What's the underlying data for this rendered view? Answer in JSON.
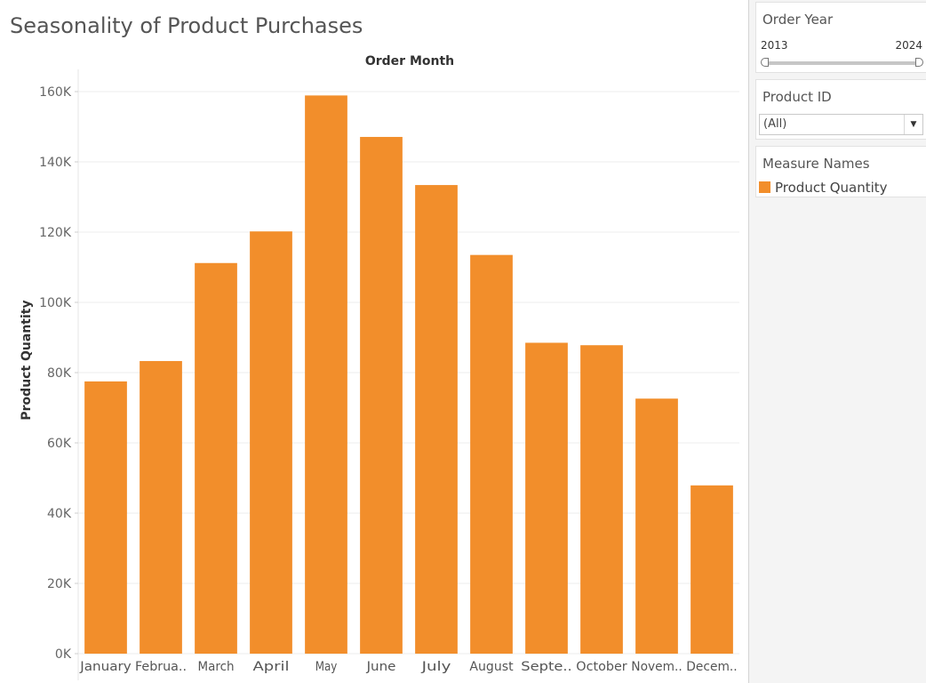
{
  "dashboard": {
    "title": "Seasonality of Product Purchases"
  },
  "filters": {
    "order_year": {
      "title": "Order Year",
      "range_min_label": "2013",
      "range_max_label": "2024"
    },
    "product_id": {
      "title": "Product ID",
      "selected": "(All)"
    }
  },
  "legend": {
    "title": "Measure Names",
    "items": [
      {
        "label": "Product Quantity",
        "color": "#f28e2b"
      }
    ]
  },
  "chart_data": {
    "type": "bar",
    "title": "",
    "column_header": "Order Month",
    "xlabel": "",
    "ylabel": "Product Quantity",
    "categories": [
      "January",
      "Februa..",
      "March",
      "April",
      "May",
      "June",
      "July",
      "August",
      "Septe..",
      "October",
      "Novem..",
      "Decem.."
    ],
    "series": [
      {
        "name": "Product Quantity",
        "color": "#f28e2b",
        "values": [
          77500,
          83300,
          111200,
          120200,
          158900,
          147100,
          133400,
          113500,
          88500,
          87800,
          72600,
          47900
        ]
      }
    ],
    "ylim": [
      0,
      160000
    ],
    "yticks": [
      0,
      20000,
      40000,
      60000,
      80000,
      100000,
      120000,
      140000,
      160000
    ],
    "ytick_labels": [
      "0K",
      "20K",
      "40K",
      "60K",
      "80K",
      "100K",
      "120K",
      "140K",
      "160K"
    ],
    "grid": true,
    "legend_position": "right"
  }
}
